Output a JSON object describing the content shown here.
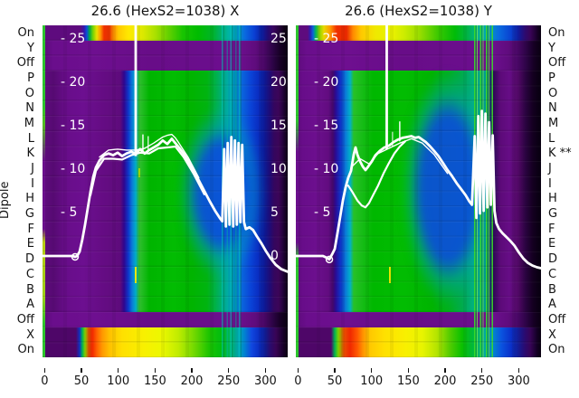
{
  "axes": {
    "y_axis_title": "Dipole",
    "left_labels": [
      "On",
      "Y",
      "Off",
      "P",
      "O",
      "N",
      "M",
      "L",
      "K",
      "J",
      "I",
      "H",
      "G",
      "F",
      "E",
      "D",
      "C",
      "B",
      "A",
      "Off",
      "X",
      "On"
    ],
    "right_labels": [
      "On",
      "Y",
      "Off",
      "P",
      "O",
      "N",
      "M",
      "L",
      "K **",
      "J",
      "I",
      "H",
      "G",
      "F",
      "E",
      "D",
      "C",
      "B",
      "A",
      "Off",
      "X",
      "On"
    ],
    "x_ticks": [
      0,
      50,
      100,
      150,
      200,
      250,
      300
    ]
  },
  "palette": {
    "purple": "#6a0e8c",
    "dark_purple": "#3a0458",
    "green": "#00b400",
    "teal": "#00a8a8",
    "blue": "#0a50d8",
    "cyan": "#00acc8",
    "yellow": "#f0f000",
    "orange": "#ff9800",
    "red": "#f03000",
    "black_edge": "#0a0010",
    "curve": "#ffffff",
    "text": "#141414"
  },
  "chart_data": [
    {
      "type": "heatmap",
      "panel": "X",
      "title": "26.6 (HexS2=1038) X",
      "x_axis": {
        "ticks": [
          0,
          50,
          100,
          150,
          200,
          250,
          300
        ],
        "range": [
          -3,
          330.5
        ]
      },
      "y_rows": [
        "On",
        "Y",
        "Off",
        "P",
        "O",
        "N",
        "M",
        "L",
        "K",
        "J",
        "I",
        "H",
        "G",
        "F",
        "E",
        "D",
        "C",
        "B",
        "A",
        "Off",
        "X",
        "On"
      ],
      "overlay_axis": {
        "left_ticks": [
          {
            "label": "- 25",
            "value": 25
          },
          {
            "label": "- 20",
            "value": 20
          },
          {
            "label": "- 15",
            "value": 15
          },
          {
            "label": "- 10",
            "value": 10
          },
          {
            "label": "- 5",
            "value": 5
          }
        ],
        "right_ticks": [
          {
            "label": "25",
            "value": 25
          },
          {
            "label": "20",
            "value": 20
          },
          {
            "label": "15",
            "value": 15
          },
          {
            "label": "10",
            "value": 10
          },
          {
            "label": "5",
            "value": 5
          },
          {
            "label": "0",
            "value": 0
          }
        ]
      },
      "traces": [
        [
          [
            -3,
            0
          ],
          [
            20,
            0
          ],
          [
            38,
            0
          ],
          [
            41.3,
            -0.1
          ],
          [
            44,
            0
          ],
          [
            47.5,
            0.5
          ],
          [
            51.2,
            1.9
          ],
          [
            54.8,
            3.6
          ],
          [
            58.5,
            5.5
          ],
          [
            62.2,
            7.4
          ],
          [
            65.9,
            9.1
          ],
          [
            69.6,
            10.2
          ],
          [
            74.5,
            11.0
          ],
          [
            80.7,
            11.6
          ],
          [
            86.8,
            11.8
          ],
          [
            92.9,
            11.6
          ],
          [
            99.1,
            11.9
          ],
          [
            105.2,
            11.5
          ],
          [
            111.3,
            11.8
          ],
          [
            117.5,
            12.0
          ],
          [
            123.6,
            11.8
          ],
          [
            129.7,
            12.3
          ],
          [
            135.9,
            11.8
          ],
          [
            142,
            12.2
          ],
          [
            148.2,
            12.5
          ],
          [
            154.3,
            12.8
          ],
          [
            160.4,
            13.3
          ],
          [
            166.6,
            12.9
          ],
          [
            172.7,
            13.5
          ],
          [
            177.6,
            13.0
          ],
          [
            182.5,
            12.5
          ],
          [
            188.7,
            11.8
          ],
          [
            194.8,
            11.0
          ],
          [
            202.2,
            9.9
          ],
          [
            209.5,
            8.7
          ],
          [
            216.9,
            7.5
          ],
          [
            224.3,
            6.3
          ],
          [
            231.6,
            5.2
          ],
          [
            237.8,
            4.4
          ],
          [
            241.4,
            4.0
          ],
          [
            243.9,
            12.3
          ],
          [
            246.3,
            3.4
          ],
          [
            248.8,
            13.0
          ],
          [
            251.2,
            3.6
          ],
          [
            253.7,
            13.7
          ],
          [
            256.2,
            3.4
          ],
          [
            258.6,
            13.3
          ],
          [
            261.1,
            3.6
          ],
          [
            263.5,
            13.0
          ],
          [
            266,
            3.9
          ],
          [
            268.4,
            12.8
          ],
          [
            270.9,
            3.9
          ],
          [
            273.3,
            3.1
          ],
          [
            278.3,
            3.3
          ],
          [
            283.2,
            3.0
          ],
          [
            288.1,
            2.3
          ],
          [
            294.2,
            1.5
          ],
          [
            300.4,
            0.6
          ],
          [
            306.5,
            -0.2
          ],
          [
            313.9,
            -1.0
          ],
          [
            321.3,
            -1.5
          ],
          [
            329.9,
            -1.8
          ]
        ],
        [
          [
            62.2,
            7.0
          ],
          [
            69.6,
            9.8
          ],
          [
            80.7,
            11.2
          ],
          [
            92.9,
            11.2
          ],
          [
            105.2,
            11.1
          ],
          [
            117.5,
            11.6
          ],
          [
            129.7,
            11.9
          ],
          [
            142,
            11.8
          ],
          [
            154.3,
            12.4
          ],
          [
            166.6,
            12.5
          ],
          [
            177.6,
            12.6
          ],
          [
            188.7,
            11.4
          ],
          [
            202.2,
            9.5
          ],
          [
            216.9,
            7.1
          ]
        ],
        [
          [
            74.5,
            11.4
          ],
          [
            86.8,
            12.2
          ],
          [
            99.1,
            12.3
          ],
          [
            111.3,
            12.2
          ],
          [
            123.6,
            12.2
          ],
          [
            135.9,
            12.4
          ],
          [
            148.2,
            13.0
          ],
          [
            160.4,
            13.7
          ],
          [
            166.6,
            13.9
          ],
          [
            172.7,
            14.0
          ],
          [
            177.6,
            13.6
          ],
          [
            182.5,
            13.0
          ],
          [
            194.8,
            11.4
          ],
          [
            209.5,
            9.0
          ]
        ]
      ],
      "spikes": [
        {
          "x": 123.7,
          "top": 26.6,
          "bottom": 11.5,
          "w": 2.8
        },
        {
          "x": 133.5,
          "top": 14.0,
          "bottom": 12.0,
          "w": 1.4
        },
        {
          "x": 140.7,
          "top": 13.8,
          "bottom": 12.0,
          "w": 1.2
        }
      ],
      "marker": {
        "x": 41.3,
        "v": -0.1
      }
    },
    {
      "type": "heatmap",
      "panel": "Y",
      "title": "26.6 (HexS2=1038) Y",
      "x_axis": {
        "ticks": [
          0,
          50,
          100,
          150,
          200,
          250,
          300
        ],
        "range": [
          -3,
          330.5
        ]
      },
      "y_rows": [
        "On",
        "Y",
        "Off",
        "P",
        "O",
        "N",
        "M",
        "L",
        "K",
        "J",
        "I",
        "H",
        "G",
        "F",
        "E",
        "D",
        "C",
        "B",
        "A",
        "Off",
        "X",
        "On"
      ],
      "overlay_axis": {
        "left_ticks": [
          {
            "label": "- 25",
            "value": 25
          },
          {
            "label": "- 20",
            "value": 20
          },
          {
            "label": "- 15",
            "value": 15
          },
          {
            "label": "- 10",
            "value": 10
          },
          {
            "label": "- 5",
            "value": 5
          }
        ],
        "right_ticks": []
      },
      "traces": [
        [
          [
            -3,
            0
          ],
          [
            20,
            0
          ],
          [
            33.9,
            0
          ],
          [
            38.9,
            -0.2
          ],
          [
            42.6,
            -0.4
          ],
          [
            46.3,
            0.2
          ],
          [
            49.9,
            0.8
          ],
          [
            53.6,
            2.6
          ],
          [
            57.3,
            4.5
          ],
          [
            61,
            6.4
          ],
          [
            64.7,
            7.9
          ],
          [
            68.3,
            9.0
          ],
          [
            72,
            9.8
          ],
          [
            75.7,
            11.7
          ],
          [
            78.2,
            12.5
          ],
          [
            80.6,
            11.7
          ],
          [
            84.3,
            10.9
          ],
          [
            88,
            10.3
          ],
          [
            91.7,
            9.9
          ],
          [
            95.4,
            10.3
          ],
          [
            100.3,
            10.9
          ],
          [
            105.2,
            11.6
          ],
          [
            111.3,
            12.1
          ],
          [
            117.4,
            12.5
          ],
          [
            123.6,
            12.7
          ],
          [
            129.7,
            13.1
          ],
          [
            135.8,
            13.4
          ],
          [
            142,
            13.6
          ],
          [
            148.1,
            13.7
          ],
          [
            154.2,
            13.8
          ],
          [
            159.1,
            13.6
          ],
          [
            164,
            13.7
          ],
          [
            168.9,
            13.4
          ],
          [
            173.8,
            13.1
          ],
          [
            178.7,
            12.7
          ],
          [
            184.9,
            12.1
          ],
          [
            191,
            11.5
          ],
          [
            197.1,
            10.7
          ],
          [
            203.3,
            9.9
          ],
          [
            209.4,
            9.2
          ],
          [
            215.5,
            8.4
          ],
          [
            221.7,
            7.7
          ],
          [
            227.8,
            7.0
          ],
          [
            232.7,
            6.3
          ],
          [
            236.4,
            5.9
          ],
          [
            240.1,
            13.8
          ],
          [
            242.5,
            4.4
          ],
          [
            245,
            16.1
          ],
          [
            247.4,
            4.9
          ],
          [
            249.9,
            16.7
          ],
          [
            252.3,
            5.2
          ],
          [
            254.8,
            16.4
          ],
          [
            257.3,
            5.6
          ],
          [
            259.7,
            15.4
          ],
          [
            262.2,
            5.9
          ],
          [
            264.6,
            13.9
          ],
          [
            267.1,
            5.2
          ],
          [
            269.5,
            3.8
          ],
          [
            273.2,
            3.1
          ],
          [
            278.1,
            2.6
          ],
          [
            283,
            2.2
          ],
          [
            287.9,
            1.8
          ],
          [
            294.1,
            1.2
          ],
          [
            300.2,
            0.4
          ],
          [
            306.4,
            -0.3
          ],
          [
            312.5,
            -0.8
          ],
          [
            318.6,
            -1.1
          ],
          [
            324.8,
            -1.3
          ],
          [
            329.7,
            -1.4
          ]
        ],
        [
          [
            68.3,
            8.1
          ],
          [
            74.4,
            7.3
          ],
          [
            80.6,
            6.4
          ],
          [
            86.7,
            5.8
          ],
          [
            91.7,
            5.6
          ],
          [
            96.6,
            6.1
          ],
          [
            102.7,
            7.1
          ],
          [
            108.8,
            8.1
          ],
          [
            116.2,
            9.5
          ],
          [
            123.6,
            10.7
          ],
          [
            130.9,
            11.8
          ],
          [
            138.3,
            12.6
          ],
          [
            145.6,
            13.2
          ]
        ],
        [
          [
            72,
            10.2
          ],
          [
            84.3,
            11.2
          ],
          [
            96.6,
            10.6
          ],
          [
            108.8,
            11.8
          ],
          [
            123.6,
            12.4
          ],
          [
            138.3,
            13.0
          ],
          [
            154.2,
            13.5
          ],
          [
            168.9,
            13.0
          ],
          [
            184.9,
            11.7
          ],
          [
            203.3,
            9.5
          ]
        ]
      ],
      "spikes": [
        {
          "x": 120.6,
          "top": 26.6,
          "bottom": 12.3,
          "w": 2.8
        },
        {
          "x": 138.3,
          "top": 15.5,
          "bottom": 13.2,
          "w": 1.4
        },
        {
          "x": 128.5,
          "top": 14.3,
          "bottom": 12.6,
          "w": 1.0
        }
      ],
      "marker": {
        "x": 42.6,
        "v": -0.4
      }
    }
  ]
}
